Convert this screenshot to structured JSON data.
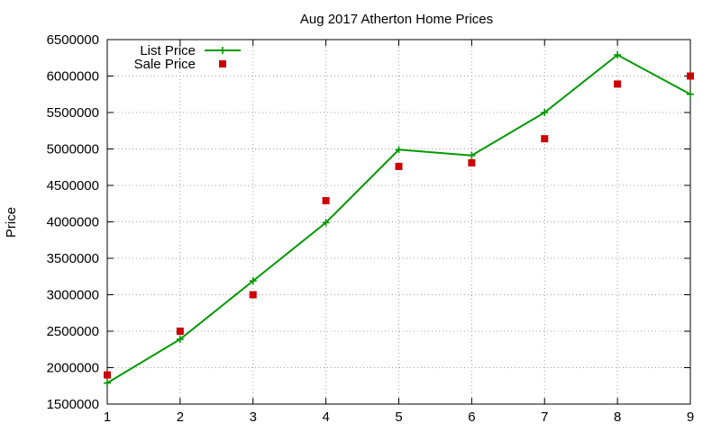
{
  "chart_data": {
    "type": "line",
    "title": "Aug 2017 Atherton Home Prices",
    "xlabel": "",
    "ylabel": "Price",
    "x": [
      1,
      2,
      3,
      4,
      5,
      6,
      7,
      8,
      9
    ],
    "xlim": [
      1,
      9
    ],
    "ylim": [
      1500000,
      6500000
    ],
    "xticks": [
      "1",
      "2",
      "3",
      "4",
      "5",
      "6",
      "7",
      "8",
      "9"
    ],
    "yticks": [
      "1500000",
      "2000000",
      "2500000",
      "3000000",
      "3500000",
      "4000000",
      "4500000",
      "5000000",
      "5500000",
      "6000000",
      "6500000"
    ],
    "grid": true,
    "legend_position": "top-left",
    "series": [
      {
        "name": "List Price",
        "style": "line-with-plus-markers",
        "color": "#009900",
        "values": [
          1790000,
          2390000,
          3190000,
          3990000,
          4990000,
          4910000,
          5500000,
          6290000,
          5750000
        ]
      },
      {
        "name": "Sale Price",
        "style": "square-markers",
        "color": "#cc0000",
        "values": [
          1900000,
          2500000,
          3000000,
          4290000,
          4760000,
          4810000,
          5140000,
          5890000,
          6000000
        ]
      }
    ]
  }
}
